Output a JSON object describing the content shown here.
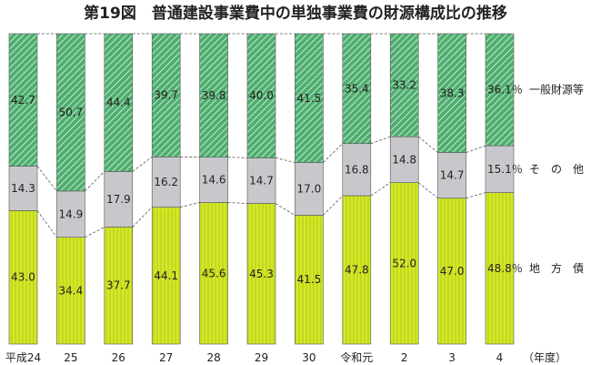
{
  "chart_data": {
    "type": "bar",
    "title": "第19図　普通建設事業費中の単独事業費の財源構成比の推移",
    "categories": [
      "平成24",
      "25",
      "26",
      "27",
      "28",
      "29",
      "30",
      "令和元",
      "2",
      "3",
      "4"
    ],
    "x_unit_label": "（年度）",
    "stacked": true,
    "ylim": [
      0,
      100
    ],
    "grid": false,
    "legend_position": "right",
    "series": [
      {
        "name": "地　方　債",
        "color": "#d4e82a",
        "values": [
          43.0,
          34.4,
          37.7,
          44.1,
          45.6,
          45.3,
          41.5,
          47.8,
          52.0,
          47.0,
          48.8
        ]
      },
      {
        "name": "そ　の　他",
        "color": "#c8c8cc",
        "values": [
          14.3,
          14.9,
          17.9,
          16.2,
          14.6,
          14.7,
          17.0,
          16.8,
          14.8,
          14.7,
          15.1
        ]
      },
      {
        "name": "一般財源等",
        "color": "#4fae6e",
        "values": [
          42.7,
          50.7,
          44.4,
          39.7,
          39.8,
          40.0,
          41.5,
          35.4,
          33.2,
          38.3,
          36.1
        ]
      }
    ],
    "value_labels": [
      [
        "43.0",
        "34.4",
        "37.7",
        "44.1",
        "45.6",
        "45.3",
        "41.5",
        "47.8",
        "52.0",
        "47.0",
        "48.8％"
      ],
      [
        "14.3",
        "14.9",
        "17.9",
        "16.2",
        "14.6",
        "14.7",
        "17.0",
        "16.8",
        "14.8",
        "14.7",
        "15.1％"
      ],
      [
        "42.7",
        "50.7",
        "44.4",
        "39.7",
        "39.8",
        "40.0",
        "41.5",
        "35.4",
        "33.2",
        "38.3",
        "36.1％"
      ]
    ]
  }
}
